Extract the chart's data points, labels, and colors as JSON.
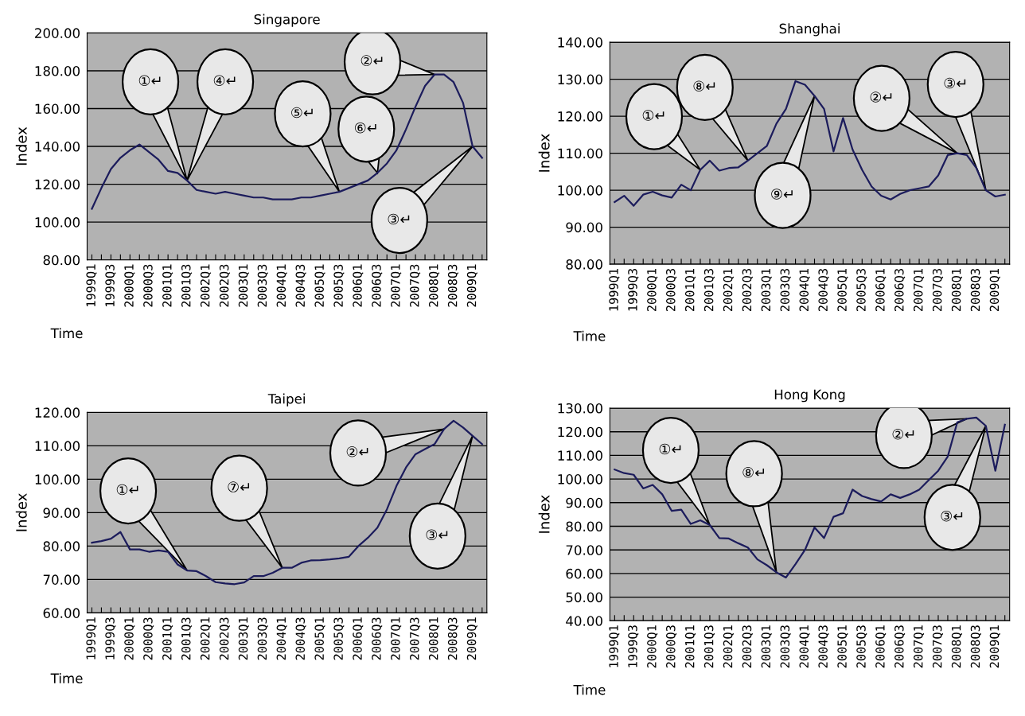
{
  "chart_data": [
    {
      "type": "line",
      "title": "Singapore",
      "xlabel": "Time",
      "ylabel": "Index",
      "grid": "y",
      "categories": [
        "1999Q1",
        null,
        "1999Q3",
        null,
        "2000Q1",
        null,
        "2000Q3",
        null,
        "2001Q1",
        null,
        "2001Q3",
        null,
        "2002Q1",
        null,
        "2002Q3",
        null,
        "2003Q1",
        null,
        "2003Q3",
        null,
        "2004Q1",
        null,
        "2004Q3",
        null,
        "2005Q1",
        null,
        "2005Q3",
        null,
        "2006Q1",
        null,
        "2006Q3",
        null,
        "2007Q1",
        null,
        "2007Q3",
        null,
        "2008Q1",
        null,
        "2008Q3",
        null,
        "2009Q1",
        null
      ],
      "series": [
        {
          "color": "#1c1c5c",
          "values": [
            107,
            118,
            128,
            134,
            138,
            141,
            137,
            133,
            127,
            126,
            122,
            117,
            116,
            115,
            116,
            115,
            114,
            113,
            113,
            112,
            112,
            112,
            113,
            113,
            114,
            115,
            116,
            118,
            120,
            122,
            126,
            131,
            138,
            149,
            161,
            172,
            178,
            178,
            174,
            163,
            140,
            134
          ]
        }
      ],
      "ylim": [
        80,
        200
      ],
      "yticks": [
        {
          "value": 80,
          "label": "80.00"
        },
        {
          "value": 100,
          "label": "100.00"
        },
        {
          "value": 120,
          "label": "120.00"
        },
        {
          "value": 140,
          "label": "140.00"
        },
        {
          "value": 160,
          "label": "160.00"
        },
        {
          "value": 180,
          "label": "180.00"
        },
        {
          "value": 200,
          "label": "200.00"
        }
      ],
      "annotations": [
        "①↵",
        "④↵",
        "⑤↵",
        "⑥↵",
        "②↵",
        "③↵"
      ]
    },
    {
      "type": "line",
      "title": "Shanghai",
      "xlabel": "Time",
      "ylabel": "Index",
      "grid": "y",
      "categories": [
        "1999Q1",
        null,
        "1999Q3",
        null,
        "2000Q1",
        null,
        "2000Q3",
        null,
        "2001Q1",
        null,
        "2001Q3",
        null,
        "2002Q1",
        null,
        "2002Q3",
        null,
        "2003Q1",
        null,
        "2003Q3",
        null,
        "2004Q1",
        null,
        "2004Q3",
        null,
        "2005Q1",
        null,
        "2005Q3",
        null,
        "2006Q1",
        null,
        "2006Q3",
        null,
        "2007Q1",
        null,
        "2007Q3",
        null,
        "2008Q1",
        null,
        "2008Q3",
        null,
        "2009Q1",
        null
      ],
      "series": [
        {
          "color": "#1c1c5c",
          "values": [
            96.8,
            98.5,
            95.8,
            98.8,
            99.6,
            98.6,
            98,
            101.5,
            100,
            105.5,
            108,
            105.3,
            106,
            106.2,
            108,
            110,
            112,
            118,
            122,
            129.5,
            128.5,
            125.5,
            122,
            110.5,
            119.5,
            111,
            105.5,
            101,
            98.5,
            97.5,
            99,
            100,
            100.5,
            101,
            104,
            109.5,
            110,
            109.5,
            106,
            100,
            98.3,
            98.8
          ]
        }
      ],
      "ylim": [
        80,
        140
      ],
      "yticks": [
        {
          "value": 80,
          "label": "80.00"
        },
        {
          "value": 90,
          "label": "90.00"
        },
        {
          "value": 100,
          "label": "100.00"
        },
        {
          "value": 110,
          "label": "110.00"
        },
        {
          "value": 120,
          "label": "120.00"
        },
        {
          "value": 130,
          "label": "130.00"
        },
        {
          "value": 140,
          "label": "140.00"
        }
      ],
      "annotations": [
        "①↵",
        "⑧↵",
        "⑨↵",
        "②↵",
        "③↵"
      ]
    },
    {
      "type": "line",
      "title": "Taipei",
      "xlabel": "Time",
      "ylabel": "Index",
      "grid": "y",
      "categories": [
        "1999Q1",
        null,
        "1999Q3",
        null,
        "2000Q1",
        null,
        "2000Q3",
        null,
        "2001Q1",
        null,
        "2001Q3",
        null,
        "2002Q1",
        null,
        "2002Q3",
        null,
        "2003Q1",
        null,
        "2003Q3",
        null,
        "2004Q1",
        null,
        "2004Q3",
        null,
        "2005Q1",
        null,
        "2005Q3",
        null,
        "2006Q1",
        null,
        "2006Q3",
        null,
        "2007Q1",
        null,
        "2007Q3",
        null,
        "2008Q1",
        null,
        "2008Q3",
        null,
        "2009Q1",
        null
      ],
      "series": [
        {
          "color": "#1c1c5c",
          "values": [
            81,
            81.5,
            82.2,
            84.2,
            79,
            79,
            78.3,
            78.7,
            78.3,
            74.5,
            72.7,
            72.5,
            71,
            69.2,
            68.8,
            68.6,
            69.1,
            71,
            71,
            72,
            73.5,
            73.5,
            75,
            75.7,
            75.8,
            76,
            76.3,
            76.8,
            80,
            82.5,
            85.5,
            91,
            98,
            103.5,
            107.5,
            109,
            110.5,
            115,
            117.5,
            115.5,
            113,
            110.5
          ]
        }
      ],
      "ylim": [
        60,
        120
      ],
      "yticks": [
        {
          "value": 60,
          "label": "60.00"
        },
        {
          "value": 70,
          "label": "70.00"
        },
        {
          "value": 80,
          "label": "80.00"
        },
        {
          "value": 90,
          "label": "90.00"
        },
        {
          "value": 100,
          "label": "100.00"
        },
        {
          "value": 110,
          "label": "110.00"
        },
        {
          "value": 120,
          "label": "120.00"
        }
      ],
      "annotations": [
        "①↵",
        "⑦↵",
        "②↵",
        "③↵"
      ]
    },
    {
      "type": "line",
      "title": "Hong Kong",
      "xlabel": "Time",
      "ylabel": "Index",
      "grid": "y",
      "categories": [
        "1999Q1",
        null,
        "1999Q3",
        null,
        "2000Q1",
        null,
        "2000Q3",
        null,
        "2001Q1",
        null,
        "2001Q3",
        null,
        "2002Q1",
        null,
        "2002Q3",
        null,
        "2003Q1",
        null,
        "2003Q3",
        null,
        "2004Q1",
        null,
        "2004Q3",
        null,
        "2005Q1",
        null,
        "2005Q3",
        null,
        "2006Q1",
        null,
        "2006Q3",
        null,
        "2007Q1",
        null,
        "2007Q3",
        null,
        "2008Q1",
        null,
        "2008Q3",
        null,
        "2009Q1",
        null
      ],
      "series": [
        {
          "color": "#1c1c5c",
          "values": [
            104,
            102.5,
            101.8,
            96,
            97.5,
            93.5,
            86.5,
            87,
            81,
            82.5,
            80.5,
            75,
            74.8,
            72.8,
            71,
            66,
            63.5,
            60.5,
            58.3,
            64,
            70,
            79.5,
            75,
            84,
            85.5,
            95.5,
            92.8,
            91.5,
            90.5,
            93.5,
            92,
            93.5,
            95.5,
            99.5,
            103.5,
            109.5,
            124,
            125.5,
            126,
            122.5,
            103.5,
            123
          ]
        }
      ],
      "ylim": [
        40,
        130
      ],
      "yticks": [
        {
          "value": 40,
          "label": "40.00"
        },
        {
          "value": 50,
          "label": "50.00"
        },
        {
          "value": 60,
          "label": "60.00"
        },
        {
          "value": 70,
          "label": "70.00"
        },
        {
          "value": 80,
          "label": "80.00"
        },
        {
          "value": 90,
          "label": "90.00"
        },
        {
          "value": 100,
          "label": "100.00"
        },
        {
          "value": 110,
          "label": "110.00"
        },
        {
          "value": 120,
          "label": "120.00"
        },
        {
          "value": 130,
          "label": "130.00"
        }
      ],
      "annotations": [
        "①↵",
        "⑧↵",
        "②↵",
        "③↵"
      ]
    }
  ]
}
